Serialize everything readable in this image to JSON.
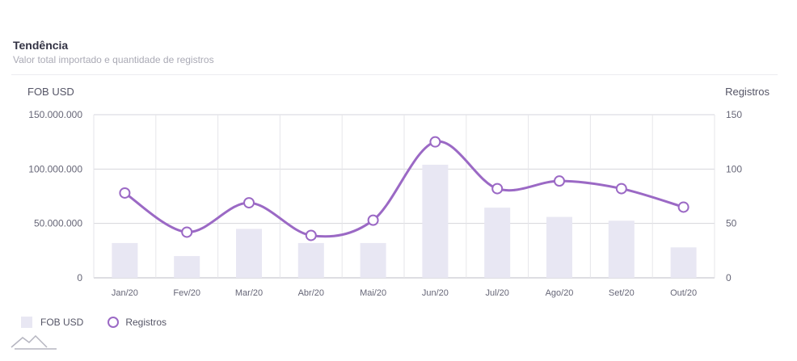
{
  "header": {
    "title": "Tendência",
    "subtitle": "Valor total importado e quantidade de registros"
  },
  "chart_data": {
    "type": "bar+line",
    "categories": [
      "Jan/20",
      "Fev/20",
      "Mar/20",
      "Abr/20",
      "Mai/20",
      "Jun/20",
      "Jul/20",
      "Ago/20",
      "Set/20",
      "Out/20"
    ],
    "series": [
      {
        "name": "FOB USD",
        "type": "bar",
        "axis": "left",
        "color": "#e8e7f3",
        "values": [
          32000000,
          20000000,
          45000000,
          32000000,
          32000000,
          104000000,
          64500000,
          56000000,
          52500000,
          28000000
        ]
      },
      {
        "name": "Registros",
        "type": "line",
        "axis": "right",
        "color": "#9b69c5",
        "values": [
          78,
          42,
          69,
          39,
          53,
          125,
          82,
          89,
          82,
          65
        ]
      }
    ],
    "y_left": {
      "label": "FOB USD",
      "ylim": [
        0,
        150000000
      ],
      "ticks": [
        0,
        50000000,
        100000000,
        150000000
      ],
      "tick_labels": [
        "0",
        "50.000.000",
        "100.000.000",
        "150.000.000"
      ]
    },
    "y_right": {
      "label": "Registros",
      "ylim": [
        0,
        150
      ],
      "ticks": [
        0,
        50,
        100,
        150
      ],
      "tick_labels": [
        "0",
        "50",
        "100",
        "150"
      ]
    },
    "grid": true,
    "legend_position": "bottom-left"
  },
  "legend": {
    "bar_label": "FOB USD",
    "line_label": "Registros"
  }
}
